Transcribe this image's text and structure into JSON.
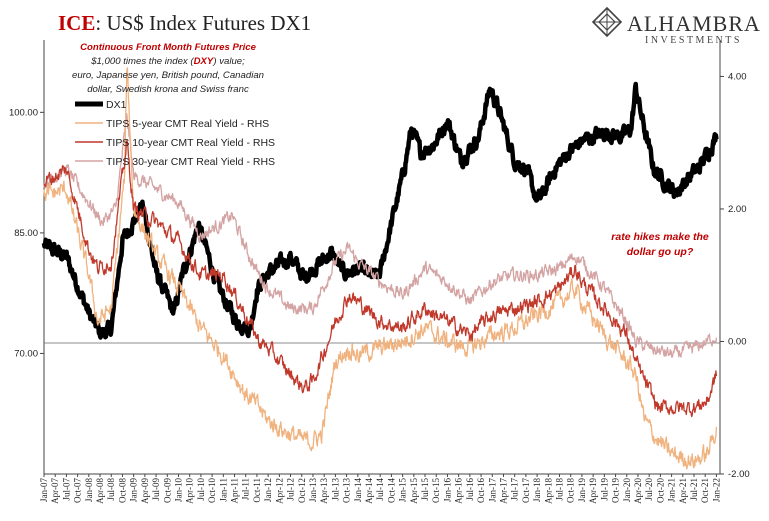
{
  "title": {
    "prefix": "ICE",
    "rest": ": US$ Index Futures DX1"
  },
  "notes": {
    "line1": "Continuous  Front Month Futures Price",
    "line2_a": "$1,000 times the index (",
    "line2_b": "DXY",
    "line2_c": ") value;",
    "line3": "euro, Japanese yen, British pound, Canadian",
    "line4": "dollar, Swedish krona and Swiss franc"
  },
  "annotation": {
    "line1": "rate hikes make the",
    "line2": "dollar go up?"
  },
  "logo": {
    "name": "ALHAMBRA",
    "sub": "INVESTMENTS"
  },
  "colors": {
    "dx1": "#000000",
    "tips5": "#f0b27e",
    "tips10": "#c0392b",
    "tips30": "#d4a3a3"
  },
  "chart_data": {
    "type": "line",
    "title": "ICE: US$ Index Futures DX1",
    "x_range": [
      "Jan-07",
      "Jan-22"
    ],
    "x_ticks": [
      "Jan-07",
      "Apr-07",
      "Jul-07",
      "Oct-07",
      "Jan-08",
      "Apr-08",
      "Jul-08",
      "Oct-08",
      "Jan-09",
      "Apr-09",
      "Jul-09",
      "Oct-09",
      "Jan-10",
      "Apr-10",
      "Jul-10",
      "Oct-10",
      "Jan-11",
      "Apr-11",
      "Jul-11",
      "Oct-11",
      "Jan-12",
      "Apr-12",
      "Jul-12",
      "Oct-12",
      "Jan-13",
      "Apr-13",
      "Jul-13",
      "Oct-13",
      "Jan-14",
      "Apr-14",
      "Jul-14",
      "Oct-14",
      "Jan-15",
      "Apr-15",
      "Jul-15",
      "Oct-15",
      "Jan-16",
      "Apr-16",
      "Jul-16",
      "Oct-16",
      "Jan-17",
      "Apr-17",
      "Jul-17",
      "Oct-17",
      "Jan-18",
      "Apr-18",
      "Jul-18",
      "Oct-18",
      "Jan-19",
      "Apr-19",
      "Jul-19",
      "Oct-19",
      "Jan-20",
      "Apr-20",
      "Jul-20",
      "Oct-20",
      "Jan-21",
      "Apr-21",
      "Jul-21",
      "Oct-21",
      "Jan-22"
    ],
    "y_left": {
      "ticks": [
        "100.00",
        "85.00",
        "70.00"
      ],
      "values": [
        100,
        85,
        70
      ],
      "range": [
        55,
        109
      ]
    },
    "y_right": {
      "ticks": [
        "4.00",
        "2.00",
        "0.00",
        "-2.00"
      ],
      "values": [
        4,
        2,
        0,
        -2
      ],
      "range": [
        -2.0,
        4.55
      ]
    },
    "legend": {
      "placement": "top-left",
      "entries": [
        "DX1",
        "TIPS 5-year CMT Real Yield - RHS",
        "TIPS 10-year CMT Real Yield - RHS",
        "TIPS 30-year CMT Real Yield - RHS"
      ]
    },
    "series": [
      {
        "name": "DX1",
        "axis": "left",
        "x": [
          2007.0,
          2007.5,
          2008.0,
          2008.25,
          2008.5,
          2008.75,
          2009.2,
          2009.5,
          2009.9,
          2010.1,
          2010.45,
          2010.9,
          2011.3,
          2011.6,
          2011.75,
          2012.0,
          2012.5,
          2012.8,
          2013.1,
          2013.4,
          2013.7,
          2014.0,
          2014.4,
          2014.5,
          2014.7,
          2015.0,
          2015.2,
          2015.4,
          2015.7,
          2016.0,
          2016.3,
          2016.7,
          2016.95,
          2017.1,
          2017.5,
          2017.75,
          2018.0,
          2018.1,
          2018.4,
          2018.7,
          2019.0,
          2019.5,
          2019.9,
          2020.1,
          2020.2,
          2020.35,
          2020.6,
          2020.9,
          2021.1,
          2021.4,
          2021.6,
          2021.9,
          2022.0
        ],
        "values": [
          83.5,
          82,
          75,
          72.5,
          73,
          84,
          88.5,
          80,
          75,
          80,
          86,
          78,
          74,
          73,
          78,
          80,
          82,
          79.5,
          81,
          82.5,
          80,
          80.5,
          79.5,
          80,
          85,
          92,
          98,
          95,
          96,
          99,
          94,
          97,
          103,
          101,
          94,
          93,
          89,
          89.5,
          93,
          95,
          96.5,
          97.5,
          97,
          98,
          103,
          99,
          93,
          91,
          90,
          92,
          93,
          96,
          97
        ]
      },
      {
        "name": "TIPS 5-year CMT Real Yield - RHS",
        "axis": "right",
        "x": [
          2007.0,
          2007.5,
          2008.0,
          2008.2,
          2008.5,
          2008.8,
          2008.85,
          2009.0,
          2009.5,
          2010.0,
          2010.5,
          2011.0,
          2011.5,
          2011.8,
          2012.0,
          2012.5,
          2012.8,
          2013.0,
          2013.2,
          2013.5,
          2013.8,
          2014.0,
          2014.5,
          2015.0,
          2015.5,
          2016.0,
          2016.5,
          2017.0,
          2017.5,
          2018.0,
          2018.5,
          2018.85,
          2019.0,
          2019.5,
          2020.0,
          2020.2,
          2020.4,
          2020.7,
          2021.0,
          2021.5,
          2021.8,
          2022.0
        ],
        "values": [
          2.2,
          2.3,
          1.0,
          0.3,
          0.5,
          2.5,
          4.2,
          2.0,
          1.3,
          0.8,
          0.2,
          -0.2,
          -0.8,
          -1.0,
          -1.2,
          -1.4,
          -1.5,
          -1.5,
          -1.4,
          -0.3,
          -0.1,
          -0.2,
          -0.1,
          0.0,
          0.2,
          0.0,
          -0.1,
          0.1,
          0.2,
          0.4,
          0.6,
          0.8,
          0.6,
          0.1,
          -0.3,
          -0.5,
          -1.2,
          -1.5,
          -1.7,
          -1.8,
          -1.7,
          -1.3
        ]
      },
      {
        "name": "TIPS 10-year CMT Real Yield - RHS",
        "axis": "right",
        "x": [
          2007.0,
          2007.5,
          2008.0,
          2008.2,
          2008.5,
          2008.85,
          2009.0,
          2009.5,
          2010.0,
          2010.5,
          2011.0,
          2011.5,
          2011.8,
          2012.0,
          2012.5,
          2012.8,
          2013.0,
          2013.5,
          2013.8,
          2014.0,
          2014.5,
          2015.0,
          2015.5,
          2016.0,
          2016.5,
          2017.0,
          2017.5,
          2018.0,
          2018.5,
          2018.85,
          2019.0,
          2019.5,
          2020.0,
          2020.2,
          2020.4,
          2020.7,
          2021.0,
          2021.5,
          2021.8,
          2022.0
        ],
        "values": [
          2.4,
          2.6,
          1.4,
          1.1,
          1.2,
          3.0,
          2.0,
          1.8,
          1.5,
          1.0,
          1.0,
          0.4,
          0.0,
          -0.1,
          -0.5,
          -0.7,
          -0.6,
          0.3,
          0.7,
          0.6,
          0.3,
          0.2,
          0.5,
          0.3,
          0.1,
          0.4,
          0.5,
          0.6,
          0.8,
          1.1,
          0.9,
          0.5,
          0.1,
          -0.3,
          -0.6,
          -1.0,
          -1.0,
          -1.0,
          -0.9,
          -0.5
        ]
      },
      {
        "name": "TIPS 30-year CMT Real Yield - RHS",
        "axis": "right",
        "x": [
          2007.0,
          2007.5,
          2008.0,
          2008.3,
          2008.6,
          2008.85,
          2009.0,
          2009.5,
          2010.0,
          2010.5,
          2011.0,
          2011.2,
          2011.5,
          2011.8,
          2012.0,
          2012.5,
          2013.0,
          2013.5,
          2013.8,
          2014.0,
          2014.5,
          2015.0,
          2015.5,
          2016.0,
          2016.5,
          2017.0,
          2017.5,
          2018.0,
          2018.5,
          2018.85,
          2019.0,
          2019.5,
          2020.0,
          2020.2,
          2020.5,
          2021.0,
          2021.5,
          2021.8,
          2022.0
        ],
        "values": [
          2.4,
          2.6,
          2.1,
          1.8,
          2.0,
          3.4,
          2.5,
          2.3,
          2.1,
          1.6,
          1.8,
          1.9,
          1.4,
          1.0,
          0.8,
          0.5,
          0.5,
          1.2,
          1.4,
          1.2,
          0.9,
          0.7,
          1.1,
          0.9,
          0.6,
          0.9,
          1.0,
          1.0,
          1.1,
          1.3,
          1.2,
          0.8,
          0.3,
          0.0,
          -0.1,
          -0.2,
          -0.1,
          0.0,
          0.1
        ]
      }
    ]
  }
}
